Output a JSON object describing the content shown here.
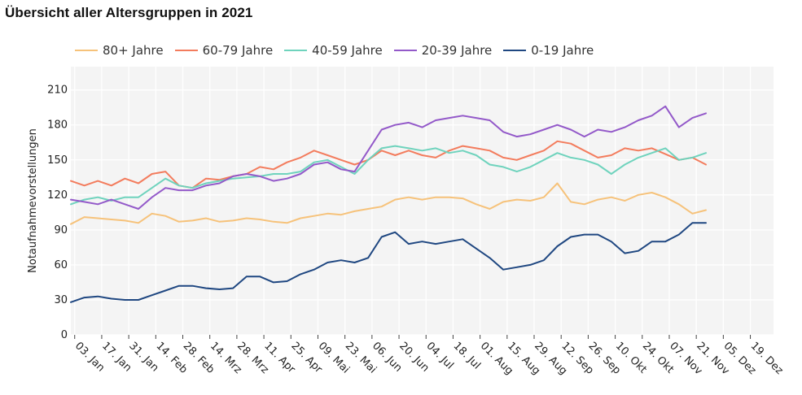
{
  "title": "Übersicht aller Altersgruppen in 2021",
  "chart_data": {
    "type": "line",
    "title": "Übersicht aller Altersgruppen in 2021",
    "xlabel": "",
    "ylabel": "Notaufnahmevorstellungen",
    "ylim": [
      0,
      230
    ],
    "yticks": [
      0,
      30,
      60,
      90,
      120,
      150,
      180,
      210
    ],
    "xlim": [
      "2021-01-01",
      "2021-12-31"
    ],
    "xtick_labels": [
      "03. Jan",
      "17. Jan",
      "31. Jan",
      "14. Feb",
      "28. Feb",
      "14. Mrz",
      "28. Mrz",
      "11. Apr",
      "25. Apr",
      "09. Mai",
      "23. Mai",
      "06. Jun",
      "20. Jun",
      "04. Jul",
      "18. Jul",
      "01. Aug",
      "15. Aug",
      "29. Aug",
      "12. Sep",
      "26. Sep",
      "10. Okt",
      "24. Okt",
      "07. Nov",
      "21. Nov",
      "05. Dez",
      "19. Dez"
    ],
    "xtick_dates": [
      "2021-01-03",
      "2021-01-17",
      "2021-01-31",
      "2021-02-14",
      "2021-02-28",
      "2021-03-14",
      "2021-03-28",
      "2021-04-11",
      "2021-04-25",
      "2021-05-09",
      "2021-05-23",
      "2021-06-06",
      "2021-06-20",
      "2021-07-04",
      "2021-07-18",
      "2021-08-01",
      "2021-08-15",
      "2021-08-29",
      "2021-09-12",
      "2021-09-26",
      "2021-10-10",
      "2021-10-24",
      "2021-11-07",
      "2021-11-21",
      "2021-12-05",
      "2021-12-19"
    ],
    "grid": true,
    "legend_position": "top",
    "x": [
      "2021-01-01",
      "2021-01-08",
      "2021-01-15",
      "2021-01-22",
      "2021-01-29",
      "2021-02-05",
      "2021-02-12",
      "2021-02-19",
      "2021-02-26",
      "2021-03-05",
      "2021-03-12",
      "2021-03-19",
      "2021-03-26",
      "2021-04-02",
      "2021-04-09",
      "2021-04-16",
      "2021-04-23",
      "2021-04-30",
      "2021-05-07",
      "2021-05-14",
      "2021-05-21",
      "2021-05-28",
      "2021-06-04",
      "2021-06-11",
      "2021-06-18",
      "2021-06-25",
      "2021-07-02",
      "2021-07-09",
      "2021-07-16",
      "2021-07-23",
      "2021-07-30",
      "2021-08-06",
      "2021-08-13",
      "2021-08-20",
      "2021-08-27",
      "2021-09-03",
      "2021-09-10",
      "2021-09-17",
      "2021-09-24",
      "2021-10-01",
      "2021-10-08",
      "2021-10-15",
      "2021-10-22",
      "2021-10-29",
      "2021-11-05",
      "2021-11-12",
      "2021-11-19",
      "2021-11-26"
    ],
    "series": [
      {
        "name": "80+ Jahre",
        "color": "#f6c27a",
        "values": [
          95,
          101,
          100,
          99,
          98,
          96,
          104,
          102,
          97,
          98,
          100,
          97,
          98,
          100,
          99,
          97,
          96,
          100,
          102,
          104,
          103,
          106,
          108,
          110,
          116,
          118,
          116,
          118,
          118,
          117,
          112,
          108,
          114,
          116,
          115,
          118,
          130,
          114,
          112,
          116,
          118,
          115,
          120,
          122,
          118,
          112,
          104,
          107
        ]
      },
      {
        "name": "60-79 Jahre",
        "color": "#f37c5d",
        "values": [
          132,
          128,
          132,
          128,
          134,
          130,
          138,
          140,
          128,
          126,
          134,
          133,
          136,
          138,
          144,
          142,
          148,
          152,
          158,
          154,
          150,
          146,
          150,
          158,
          154,
          158,
          154,
          152,
          158,
          162,
          160,
          158,
          152,
          150,
          154,
          158,
          166,
          164,
          158,
          152,
          154,
          160,
          158,
          160,
          155,
          150,
          152,
          146
        ]
      },
      {
        "name": "40-59 Jahre",
        "color": "#6fd3bd",
        "values": [
          112,
          116,
          118,
          115,
          118,
          118,
          126,
          134,
          128,
          126,
          130,
          132,
          134,
          135,
          136,
          138,
          138,
          140,
          148,
          150,
          144,
          138,
          150,
          160,
          162,
          160,
          158,
          160,
          156,
          158,
          154,
          146,
          144,
          140,
          144,
          150,
          156,
          152,
          150,
          146,
          138,
          146,
          152,
          156,
          160,
          150,
          152,
          156
        ]
      },
      {
        "name": "20-39 Jahre",
        "color": "#9359c9",
        "values": [
          116,
          114,
          112,
          116,
          112,
          108,
          118,
          126,
          124,
          124,
          128,
          130,
          136,
          138,
          136,
          132,
          134,
          138,
          146,
          148,
          142,
          140,
          158,
          176,
          180,
          182,
          178,
          184,
          186,
          188,
          186,
          184,
          174,
          170,
          172,
          176,
          180,
          176,
          170,
          176,
          174,
          178,
          184,
          188,
          196,
          178,
          186,
          190
        ]
      },
      {
        "name": "0-19 Jahre",
        "color": "#1f4781",
        "values": [
          28,
          32,
          33,
          31,
          30,
          30,
          34,
          38,
          42,
          42,
          40,
          39,
          40,
          50,
          50,
          45,
          46,
          52,
          56,
          62,
          64,
          62,
          66,
          84,
          88,
          78,
          80,
          78,
          80,
          82,
          74,
          66,
          56,
          58,
          60,
          64,
          76,
          84,
          86,
          86,
          80,
          70,
          72,
          80,
          80,
          86,
          96,
          96
        ]
      }
    ]
  }
}
